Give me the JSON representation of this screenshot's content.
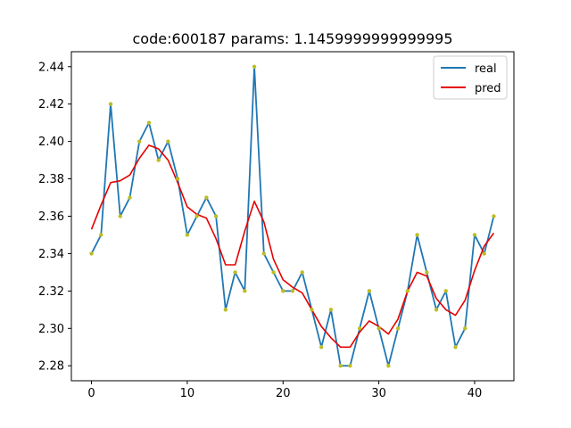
{
  "chart_data": {
    "type": "line",
    "title": "code:600187 params: 1.1459999999999995",
    "xlabel": "",
    "ylabel": "",
    "xlim": [
      -2.1,
      44.1
    ],
    "ylim": [
      2.272,
      2.448
    ],
    "xticks": [
      0,
      10,
      20,
      30,
      40
    ],
    "xtick_labels": [
      "0",
      "10",
      "20",
      "30",
      "40"
    ],
    "yticks": [
      2.28,
      2.3,
      2.32,
      2.34,
      2.36,
      2.38,
      2.4,
      2.42,
      2.44
    ],
    "ytick_labels": [
      "2.28",
      "2.30",
      "2.32",
      "2.34",
      "2.36",
      "2.38",
      "2.40",
      "2.42",
      "2.44"
    ],
    "grid": false,
    "legend": {
      "position": "top-right"
    },
    "x": [
      0,
      1,
      2,
      3,
      4,
      5,
      6,
      7,
      8,
      9,
      10,
      11,
      12,
      13,
      14,
      15,
      16,
      17,
      18,
      19,
      20,
      21,
      22,
      23,
      24,
      25,
      26,
      27,
      28,
      29,
      30,
      31,
      32,
      33,
      34,
      35,
      36,
      37,
      38,
      39,
      40,
      41,
      42
    ],
    "series": [
      {
        "name": "real",
        "color": "#1f77b4",
        "markers": true,
        "marker_color": "#bcbd22",
        "values": [
          2.34,
          2.35,
          2.42,
          2.36,
          2.37,
          2.4,
          2.41,
          2.39,
          2.4,
          2.38,
          2.35,
          2.36,
          2.37,
          2.36,
          2.31,
          2.33,
          2.32,
          2.44,
          2.34,
          2.33,
          2.32,
          2.32,
          2.33,
          2.31,
          2.29,
          2.31,
          2.28,
          2.28,
          2.3,
          2.32,
          2.3,
          2.28,
          2.3,
          2.32,
          2.35,
          2.33,
          2.31,
          2.32,
          2.29,
          2.3,
          2.35,
          2.34,
          2.36
        ]
      },
      {
        "name": "pred",
        "color": "#e60000",
        "markers": false,
        "values": [
          2.353,
          2.366,
          2.378,
          2.379,
          2.382,
          2.391,
          2.398,
          2.396,
          2.39,
          2.378,
          2.365,
          2.361,
          2.359,
          2.348,
          2.334,
          2.334,
          2.352,
          2.368,
          2.357,
          2.337,
          2.326,
          2.322,
          2.319,
          2.31,
          2.301,
          2.295,
          2.29,
          2.29,
          2.298,
          2.304,
          2.301,
          2.297,
          2.305,
          2.32,
          2.33,
          2.328,
          2.316,
          2.31,
          2.307,
          2.315,
          2.331,
          2.344,
          2.351
        ]
      }
    ]
  }
}
